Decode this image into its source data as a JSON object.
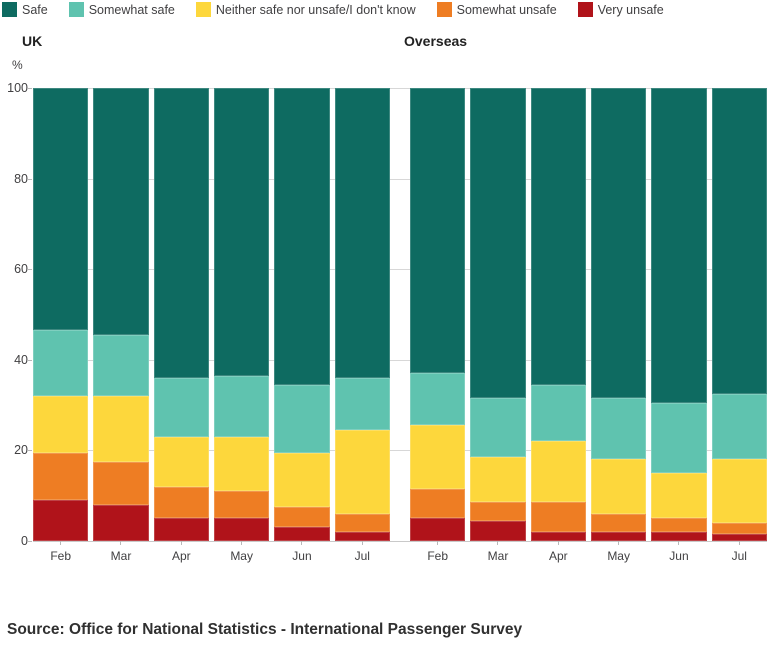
{
  "legend": {
    "items": [
      {
        "label": "Safe",
        "color": "#0E6B61"
      },
      {
        "label": "Somewhat safe",
        "color": "#5FC3AF"
      },
      {
        "label": "Neither safe nor unsafe/I don't know",
        "color": "#FDD73C"
      },
      {
        "label": "Somewhat unsafe",
        "color": "#EE7D23"
      },
      {
        "label": "Very unsafe",
        "color": "#B0131A"
      }
    ]
  },
  "chart_data": {
    "type": "bar",
    "stacked": true,
    "legend_position": "top",
    "grid": "horizontal",
    "categories": [
      "Feb",
      "Mar",
      "Apr",
      "May",
      "Jun",
      "Jul"
    ],
    "ylabel": "%",
    "ylim": [
      0,
      100
    ],
    "yticks": [
      0,
      20,
      40,
      60,
      80,
      100
    ],
    "groups": [
      {
        "title": "UK",
        "series": [
          {
            "name": "Safe",
            "values": [
              53.5,
              54.5,
              64,
              63.5,
              65.5,
              64
            ]
          },
          {
            "name": "Somewhat safe",
            "values": [
              14.5,
              13.5,
              13,
              13.5,
              15,
              11.5
            ]
          },
          {
            "name": "Neither safe nor unsafe/I don't know",
            "values": [
              12.5,
              14.5,
              11,
              12,
              12,
              18.5
            ]
          },
          {
            "name": "Somewhat unsafe",
            "values": [
              10.5,
              9.5,
              7,
              6,
              4.5,
              4
            ]
          },
          {
            "name": "Very unsafe",
            "values": [
              9,
              8,
              5,
              5,
              3,
              2
            ]
          }
        ]
      },
      {
        "title": "Overseas",
        "series": [
          {
            "name": "Safe",
            "values": [
              63,
              68.5,
              65.5,
              68.5,
              69.5,
              67.5
            ]
          },
          {
            "name": "Somewhat safe",
            "values": [
              11.5,
              13,
              12.5,
              13.5,
              15.5,
              14.5
            ]
          },
          {
            "name": "Neither safe nor unsafe/I don't know",
            "values": [
              14,
              10,
              13.5,
              12,
              10,
              14
            ]
          },
          {
            "name": "Somewhat unsafe",
            "values": [
              6.5,
              4,
              6.5,
              4,
              3,
              2.5
            ]
          },
          {
            "name": "Very unsafe",
            "values": [
              5,
              4.5,
              2,
              2,
              2,
              1.5
            ]
          }
        ]
      }
    ]
  },
  "source": "Source: Office for National Statistics - International Passenger Survey"
}
